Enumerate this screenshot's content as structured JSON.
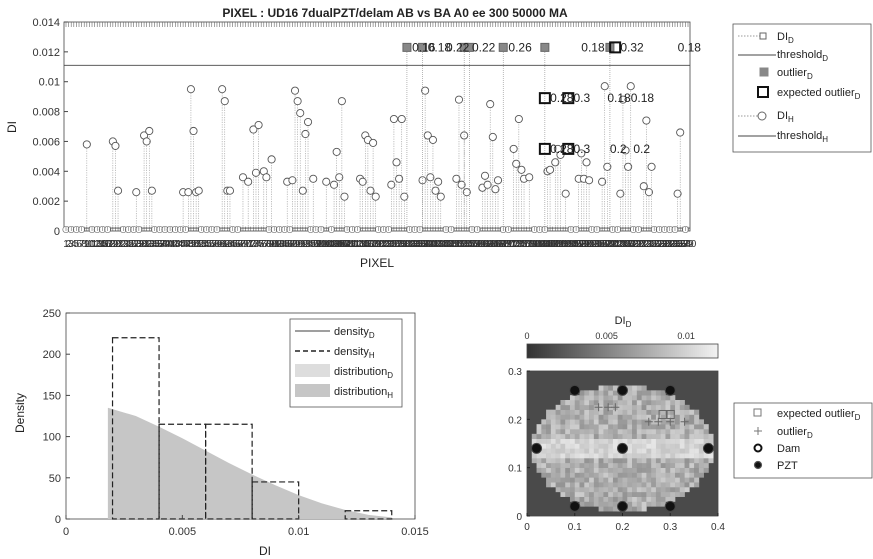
{
  "chart_data": [
    {
      "type": "scatter",
      "title": "PIXEL : UD16 7dualPZT/delam   AB vs BA    A0 ee   300    50000   MA",
      "xlabel": "PIXEL",
      "ylabel": "DI",
      "ylim": [
        0,
        0.014
      ],
      "yticks": [
        "0",
        "0.002",
        "0.004",
        "0.006",
        "0.008",
        "0.01",
        "0.012",
        "0.014"
      ],
      "legend": {
        "position": "outside-right",
        "entries": [
          {
            "base": "DI",
            "sub": "D",
            "marker": "small-square"
          },
          {
            "base": "threshold",
            "sub": "D",
            "marker": "line"
          },
          {
            "base": "outlier",
            "sub": "D",
            "marker": "filled-square"
          },
          {
            "base": "expected outlier",
            "sub": "D",
            "marker": "bold-square"
          },
          {
            "base": "DI",
            "sub": "H",
            "marker": "circle"
          },
          {
            "base": "threshold",
            "sub": "H",
            "marker": "line"
          }
        ]
      },
      "threshold_D": 0.0111,
      "threshold_H": 0.0002,
      "num_pixels": 240,
      "DI_H": [
        [
          8,
          0.0058
        ],
        [
          18,
          0.006
        ],
        [
          19,
          0.0057
        ],
        [
          20,
          0.0027
        ],
        [
          27,
          0.0026
        ],
        [
          30,
          0.0064
        ],
        [
          31,
          0.006
        ],
        [
          32,
          0.0067
        ],
        [
          33,
          0.0027
        ],
        [
          45,
          0.0026
        ],
        [
          47,
          0.0026
        ],
        [
          48,
          0.0095
        ],
        [
          49,
          0.0067
        ],
        [
          50,
          0.0026
        ],
        [
          51,
          0.0027
        ],
        [
          60,
          0.0095
        ],
        [
          61,
          0.0087
        ],
        [
          62,
          0.0027
        ],
        [
          63,
          0.0027
        ],
        [
          68,
          0.0036
        ],
        [
          70,
          0.0033
        ],
        [
          72,
          0.0068
        ],
        [
          73,
          0.0039
        ],
        [
          74,
          0.0071
        ],
        [
          76,
          0.004
        ],
        [
          77,
          0.0036
        ],
        [
          79,
          0.0048
        ],
        [
          85,
          0.0033
        ],
        [
          87,
          0.0034
        ],
        [
          88,
          0.0094
        ],
        [
          89,
          0.0087
        ],
        [
          90,
          0.0079
        ],
        [
          91,
          0.0027
        ],
        [
          92,
          0.0065
        ],
        [
          93,
          0.0073
        ],
        [
          95,
          0.0035
        ],
        [
          100,
          0.0033
        ],
        [
          103,
          0.0031
        ],
        [
          104,
          0.0053
        ],
        [
          105,
          0.0036
        ],
        [
          106,
          0.0087
        ],
        [
          107,
          0.0023
        ],
        [
          113,
          0.0035
        ],
        [
          114,
          0.0033
        ],
        [
          115,
          0.0064
        ],
        [
          116,
          0.0061
        ],
        [
          117,
          0.0027
        ],
        [
          118,
          0.0059
        ],
        [
          119,
          0.0023
        ],
        [
          125,
          0.0031
        ],
        [
          126,
          0.0075
        ],
        [
          127,
          0.0046
        ],
        [
          128,
          0.0035
        ],
        [
          129,
          0.0075
        ],
        [
          130,
          0.0023
        ],
        [
          137,
          0.0034
        ],
        [
          138,
          0.0094
        ],
        [
          139,
          0.0064
        ],
        [
          140,
          0.0036
        ],
        [
          141,
          0.0061
        ],
        [
          142,
          0.0027
        ],
        [
          143,
          0.0033
        ],
        [
          144,
          0.0023
        ],
        [
          150,
          0.0035
        ],
        [
          151,
          0.0088
        ],
        [
          152,
          0.0031
        ],
        [
          153,
          0.0064
        ],
        [
          154,
          0.0026
        ],
        [
          160,
          0.0029
        ],
        [
          161,
          0.0037
        ],
        [
          162,
          0.0031
        ],
        [
          163,
          0.0085
        ],
        [
          164,
          0.0063
        ],
        [
          165,
          0.0028
        ],
        [
          166,
          0.0034
        ],
        [
          172,
          0.0055
        ],
        [
          173,
          0.0045
        ],
        [
          174,
          0.0075
        ],
        [
          175,
          0.0041
        ],
        [
          176,
          0.0035
        ],
        [
          178,
          0.0036
        ],
        [
          185,
          0.004
        ],
        [
          186,
          0.0041
        ],
        [
          188,
          0.0046
        ],
        [
          189,
          0.0055
        ],
        [
          190,
          0.0051
        ],
        [
          192,
          0.0025
        ],
        [
          197,
          0.0035
        ],
        [
          198,
          0.0052
        ],
        [
          199,
          0.0035
        ],
        [
          200,
          0.0046
        ],
        [
          201,
          0.0034
        ],
        [
          206,
          0.0033
        ],
        [
          207,
          0.0097
        ],
        [
          208,
          0.0043
        ],
        [
          213,
          0.0025
        ],
        [
          214,
          0.0088
        ],
        [
          215,
          0.0054
        ],
        [
          216,
          0.0043
        ],
        [
          217,
          0.0097
        ],
        [
          222,
          0.003
        ],
        [
          223,
          0.0074
        ],
        [
          224,
          0.0026
        ],
        [
          225,
          0.0043
        ],
        [
          235,
          0.0025
        ],
        [
          236,
          0.0066
        ]
      ],
      "outlier_D": [
        [
          131,
          0.0123
        ],
        [
          137,
          0.0123
        ],
        [
          153,
          0.0123
        ],
        [
          155,
          0.0123
        ],
        [
          168,
          0.0123
        ],
        [
          184,
          0.0123
        ],
        [
          209,
          0.0123
        ]
      ],
      "expected_outlier_D": [
        [
          184,
          0.0089
        ],
        [
          193,
          0.0089
        ],
        [
          184,
          0.0055
        ],
        [
          193,
          0.0055
        ],
        [
          211,
          0.0123
        ]
      ],
      "point_labels": [
        {
          "text": "0.16",
          "x": 133,
          "y": 0.0123
        },
        {
          "text": "0.18",
          "x": 139,
          "y": 0.0123
        },
        {
          "text": "0.22",
          "x": 146,
          "y": 0.0123
        },
        {
          "text": "0.22",
          "x": 156,
          "y": 0.0123
        },
        {
          "text": "0.26",
          "x": 170,
          "y": 0.0123
        },
        {
          "text": "0.18",
          "x": 198,
          "y": 0.0123
        },
        {
          "text": "0.32",
          "x": 213,
          "y": 0.0123
        },
        {
          "text": "0.18",
          "x": 235,
          "y": 0.0123
        },
        {
          "text": "0.28",
          "x": 186,
          "y": 0.0089
        },
        {
          "text": "0.3",
          "x": 195,
          "y": 0.0089
        },
        {
          "text": "0.18",
          "x": 208,
          "y": 0.0089
        },
        {
          "text": "0.18",
          "x": 217,
          "y": 0.0089
        },
        {
          "text": "0.28",
          "x": 186,
          "y": 0.0055
        },
        {
          "text": "0.3",
          "x": 195,
          "y": 0.0055
        },
        {
          "text": "0.2",
          "x": 209,
          "y": 0.0055
        },
        {
          "text": "0.2",
          "x": 218,
          "y": 0.0055
        }
      ]
    },
    {
      "type": "bar",
      "xlabel": "DI",
      "ylabel": "Density",
      "xlim": [
        0,
        0.015
      ],
      "ylim": [
        0,
        250
      ],
      "xticks": [
        {
          "v": 0,
          "t": "0"
        },
        {
          "v": 0.005,
          "t": "0.005"
        },
        {
          "v": 0.01,
          "t": "0.01"
        },
        {
          "v": 0.015,
          "t": "0.015"
        }
      ],
      "yticks": [
        {
          "v": 0,
          "t": "0"
        },
        {
          "v": 50,
          "t": "50"
        },
        {
          "v": 100,
          "t": "100"
        },
        {
          "v": 150,
          "t": "150"
        },
        {
          "v": 200,
          "t": "200"
        },
        {
          "v": 250,
          "t": "250"
        }
      ],
      "legend": {
        "position": "top-right",
        "entries": [
          {
            "base": "density",
            "sub": "D"
          },
          {
            "base": "density",
            "sub": "H"
          },
          {
            "base": "distribution",
            "sub": "D"
          },
          {
            "base": "distribution",
            "sub": "H"
          }
        ]
      },
      "histogram_H": [
        {
          "x0": 0.002,
          "x1": 0.004,
          "value": 220
        },
        {
          "x0": 0.004,
          "x1": 0.006,
          "value": 115
        },
        {
          "x0": 0.006,
          "x1": 0.008,
          "value": 115
        },
        {
          "x0": 0.008,
          "x1": 0.01,
          "value": 45
        },
        {
          "x0": 0.012,
          "x1": 0.014,
          "value": 10
        }
      ],
      "distribution_H": {
        "x": [
          0.0018,
          0.003,
          0.004,
          0.005,
          0.006,
          0.007,
          0.008,
          0.009,
          0.01,
          0.011,
          0.012,
          0.013,
          0.014
        ],
        "y": [
          135,
          125,
          112,
          98,
          83,
          68,
          54,
          41,
          29,
          19,
          11,
          5,
          2
        ]
      }
    },
    {
      "type": "heatmap",
      "colorbar": {
        "label_base": "DI",
        "label_sub": "D",
        "ticks": [
          "0",
          "0.005",
          "0.01"
        ],
        "range": [
          0,
          0.012
        ]
      },
      "xlim": [
        0,
        0.4
      ],
      "ylim": [
        0,
        0.3
      ],
      "xticks": [
        "0",
        "0.1",
        "0.2",
        "0.3",
        "0.4"
      ],
      "yticks": [
        "0",
        "0.1",
        "0.2",
        "0.3"
      ],
      "legend": {
        "position": "outside-right",
        "entries": [
          {
            "base": "expected outlier",
            "sub": "D",
            "marker": "square"
          },
          {
            "base": "outlier",
            "sub": "D",
            "marker": "plus"
          },
          {
            "base": "Dam",
            "sub": "",
            "marker": "ring"
          },
          {
            "base": "PZT",
            "sub": "",
            "marker": "dot"
          }
        ]
      },
      "pzt": [
        [
          0.1,
          0.26
        ],
        [
          0.2,
          0.26
        ],
        [
          0.3,
          0.26
        ],
        [
          0.02,
          0.14
        ],
        [
          0.2,
          0.14
        ],
        [
          0.38,
          0.14
        ],
        [
          0.1,
          0.02
        ],
        [
          0.2,
          0.02
        ],
        [
          0.3,
          0.02
        ]
      ],
      "outliers": [
        [
          0.15,
          0.225
        ],
        [
          0.17,
          0.225
        ],
        [
          0.185,
          0.225
        ],
        [
          0.255,
          0.195
        ],
        [
          0.275,
          0.195
        ],
        [
          0.3,
          0.195
        ],
        [
          0.33,
          0.195
        ]
      ],
      "expected_outliers": [
        [
          0.285,
          0.21
        ],
        [
          0.3,
          0.21
        ]
      ]
    }
  ]
}
